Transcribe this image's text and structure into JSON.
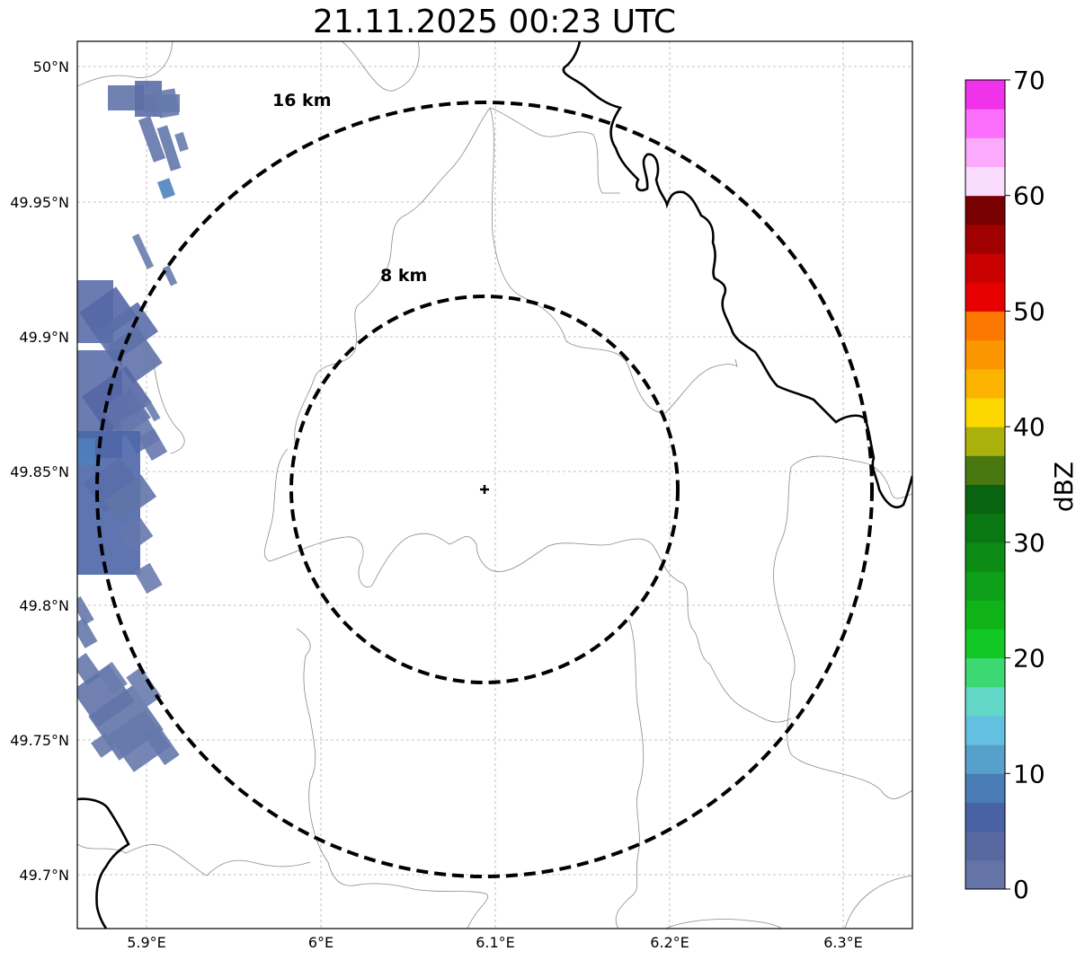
{
  "title": "21.11.2025 00:23 UTC",
  "lat_ticks": [
    "50°N",
    "49.95°N",
    "49.9°N",
    "49.85°N",
    "49.8°N",
    "49.75°N",
    "49.7°N"
  ],
  "lon_ticks": [
    "5.9°E",
    "6°E",
    "6.1°E",
    "6.2°E",
    "6.3°E"
  ],
  "range_rings": [
    {
      "label": "16 km",
      "radius_km": 16
    },
    {
      "label": "8 km",
      "radius_km": 8
    }
  ],
  "radar_site": {
    "lat": 49.843,
    "lon": 6.093
  },
  "colorbar": {
    "label": "dBZ",
    "ticks": [
      "70",
      "60",
      "50",
      "40",
      "30",
      "20",
      "10",
      "0"
    ],
    "min": 0,
    "max": 70,
    "step": 2.5,
    "colors": [
      "#6474a6",
      "#5868a0",
      "#4862a4",
      "#4a7cb6",
      "#58a0cc",
      "#64c0e0",
      "#64d8c8",
      "#3cd872",
      "#12c824",
      "#10b418",
      "#0ea018",
      "#0c8c14",
      "#0a7812",
      "#086410",
      "#4a7810",
      "#aab00c",
      "#fcd800",
      "#fcb400",
      "#fc9600",
      "#fc7800",
      "#e60000",
      "#c80000",
      "#a00000",
      "#780000",
      "#fadcfc",
      "#fcaafc",
      "#fc6efc",
      "#f032ea"
    ]
  },
  "legend_position": "right",
  "grid": true
}
